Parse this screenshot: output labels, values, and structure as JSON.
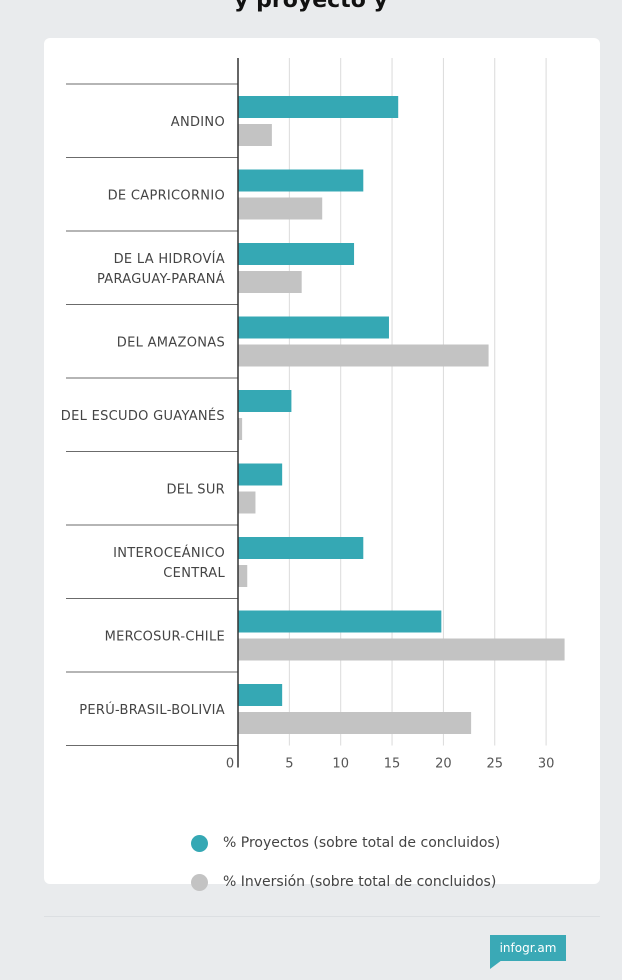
{
  "header": {
    "title": "y proyecto y"
  },
  "colors": {
    "proyectos": "#35a8b4",
    "inversion": "#c3c3c3"
  },
  "legend": {
    "items": [
      {
        "label": "% Proyectos (sobre total de concluidos)",
        "color": "#35a8b4"
      },
      {
        "label": "% Inversión (sobre total de concluidos)",
        "color": "#c3c3c3"
      }
    ]
  },
  "chart_data": {
    "type": "bar",
    "orientation": "horizontal",
    "categories": [
      "ANDINO",
      "DE CAPRICORNIO",
      "DE LA HIDROVÍA PARAGUAY-PARANÁ",
      "DEL AMAZONAS",
      "DEL ESCUDO GUAYANÉS",
      "DEL SUR",
      "INTEROCEÁNICO CENTRAL",
      "MERCOSUR-CHILE",
      "PERÚ-BRASIL-BOLIVIA"
    ],
    "category_display": [
      [
        "ANDINO"
      ],
      [
        "DE CAPRICORNIO"
      ],
      [
        "DE LA HIDROVÍA",
        "PARAGUAY-PARANÁ"
      ],
      [
        "DEL AMAZONAS"
      ],
      [
        "DEL ESCUDO GUAYANÉS"
      ],
      [
        "DEL SUR"
      ],
      [
        "INTEROCEÁNICO",
        "CENTRAL"
      ],
      [
        "MERCOSUR-CHILE"
      ],
      [
        "PERÚ-BRASIL-BOLIVIA"
      ]
    ],
    "series": [
      {
        "name": "% Proyectos (sobre total de concluidos)",
        "values": [
          15.6,
          12.2,
          11.3,
          14.7,
          5.2,
          4.3,
          12.2,
          19.8,
          4.3
        ]
      },
      {
        "name": "% Inversión (sobre total de concluidos)",
        "values": [
          3.3,
          8.2,
          6.2,
          24.4,
          0.4,
          1.7,
          0.9,
          31.8,
          22.7
        ]
      }
    ],
    "x_ticks": [
      0,
      5,
      10,
      15,
      20,
      25,
      30
    ],
    "xlim": [
      0,
      32
    ],
    "grid": true,
    "legend_position": "bottom",
    "xlabel": "",
    "ylabel": ""
  },
  "footer": {
    "badge": "infogr.am"
  }
}
